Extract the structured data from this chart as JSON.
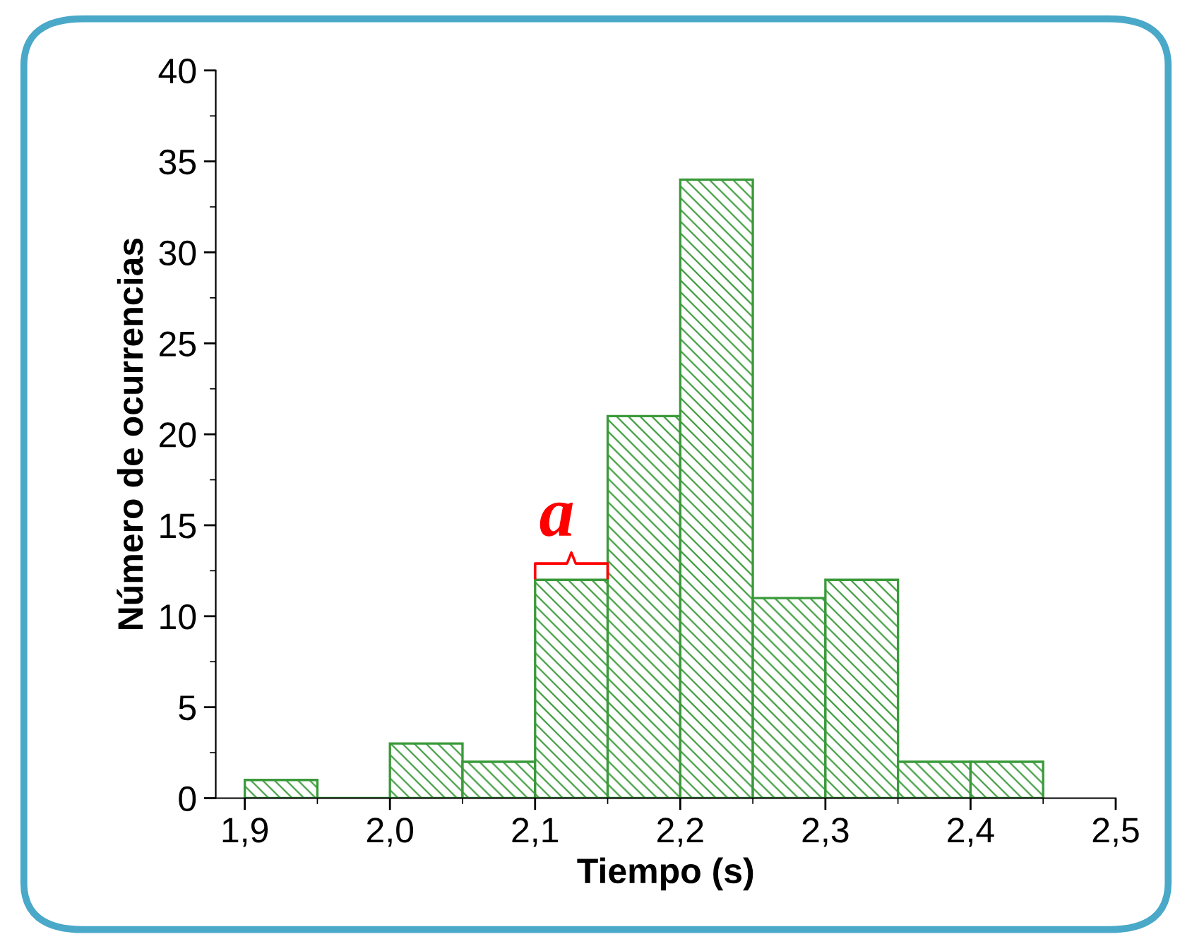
{
  "chart_data": {
    "type": "histogram",
    "xlabel": "Tiempo (s)",
    "ylabel": "Número de ocurrencias",
    "bins": [
      1.9,
      1.95,
      2.0,
      2.05,
      2.1,
      2.15,
      2.2,
      2.25,
      2.3,
      2.35,
      2.4,
      2.45
    ],
    "values": [
      1,
      0,
      3,
      2,
      12,
      21,
      34,
      11,
      12,
      2,
      2
    ],
    "color": "#3a9a3a",
    "xlim": [
      1.88,
      2.5
    ],
    "xticks": [
      {
        "value": 1.9,
        "label": "1,9"
      },
      {
        "value": 2.0,
        "label": "2,0"
      },
      {
        "value": 2.1,
        "label": "2,1"
      },
      {
        "value": 2.2,
        "label": "2,2"
      },
      {
        "value": 2.3,
        "label": "2,3"
      },
      {
        "value": 2.4,
        "label": "2,4"
      },
      {
        "value": 2.5,
        "label": "2,5"
      }
    ],
    "ylim": [
      0,
      40
    ],
    "yticks": [
      0,
      5,
      10,
      15,
      20,
      25,
      30,
      35,
      40
    ],
    "grid": false,
    "legend": false,
    "annotations": [
      {
        "text": "a",
        "x": 2.125,
        "y": 12
      }
    ]
  }
}
